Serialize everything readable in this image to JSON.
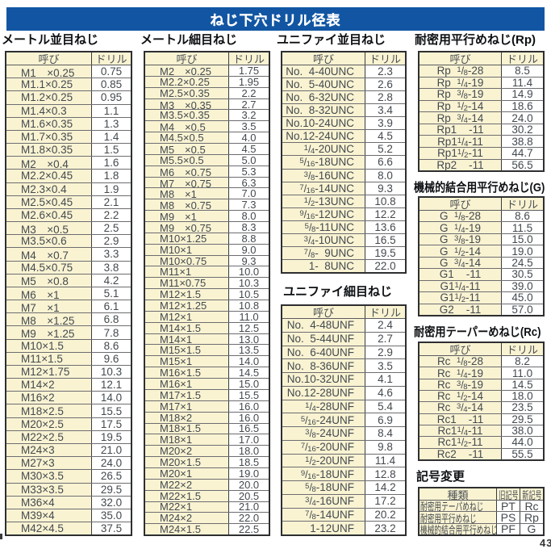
{
  "title": "ねじ下穴ドリル径表",
  "page_number": "43",
  "colors": {
    "title_bar_blue": "#1256a3",
    "cell_cream": "#f9f3d2",
    "table_border": "#2e2f31"
  },
  "tables": [
    {
      "heading": "メートル並目ねじ",
      "col_headers": [
        "呼び",
        "ドリル"
      ],
      "rows": [
        [
          "M1　×0.25",
          "0.75"
        ],
        [
          "M1.1×0.25",
          "0.85"
        ],
        [
          "M1.2×0.25",
          "0.95"
        ],
        [
          "M1.4×0.3",
          "1.1"
        ],
        [
          "M1.6×0.35",
          "1.3"
        ],
        [
          "M1.7×0.35",
          "1.4"
        ],
        [
          "M1.8×0.35",
          "1.5"
        ],
        [
          "M2　×0.4",
          "1.6"
        ],
        [
          "M2.2×0.45",
          "1.8"
        ],
        [
          "M2.3×0.4",
          "1.9"
        ],
        [
          "M2.5×0.45",
          "2.1"
        ],
        [
          "M2.6×0.45",
          "2.2"
        ],
        [
          "M3　×0.5",
          "2.5"
        ],
        [
          "M3.5×0.6",
          "2.9"
        ],
        [
          "M4　×0.7",
          "3.3"
        ],
        [
          "M4.5×0.75",
          "3.8"
        ],
        [
          "M5　×0.8",
          "4.2"
        ],
        [
          "M6　×1",
          "5.1"
        ],
        [
          "M7　×1",
          "6.1"
        ],
        [
          "M8　×1.25",
          "6.8"
        ],
        [
          "M9　×1.25",
          "7.8"
        ],
        [
          "M10×1.5",
          "8.6"
        ],
        [
          "M11×1.5",
          "9.6"
        ],
        [
          "M12×1.75",
          "10.3"
        ],
        [
          "M14×2",
          "12.1"
        ],
        [
          "M16×2",
          "14.0"
        ],
        [
          "M18×2.5",
          "15.5"
        ],
        [
          "M20×2.5",
          "17.5"
        ],
        [
          "M22×2.5",
          "19.5"
        ],
        [
          "M24×3",
          "21.0"
        ],
        [
          "M27×3",
          "24.0"
        ],
        [
          "M30×3.5",
          "26.5"
        ],
        [
          "M33×3.5",
          "29.5"
        ],
        [
          "M36×4",
          "32.0"
        ],
        [
          "M39×4",
          "35.0"
        ],
        [
          "M42×4.5",
          "37.5"
        ]
      ]
    },
    {
      "heading": "メートル細目ねじ",
      "col_headers": [
        "呼び",
        "ドリル"
      ],
      "rows": [
        [
          "M2　×0.25",
          "1.75"
        ],
        [
          "M2.2×0.25",
          "1.95"
        ],
        [
          "M2.5×0.35",
          "2.2"
        ],
        [
          "M3　×0.35",
          "2.7"
        ],
        [
          "M3.5×0.35",
          "3.2"
        ],
        [
          "M4　×0.5",
          "3.5"
        ],
        [
          "M4.5×0.5",
          "4.0"
        ],
        [
          "M5　×0.5",
          "4.5"
        ],
        [
          "M5.5×0.5",
          "5.0"
        ],
        [
          "M6　×0.75",
          "5.3"
        ],
        [
          "M7　×0.75",
          "6.3"
        ],
        [
          "M8　×1",
          "7.0"
        ],
        [
          "M8　×0.75",
          "7.3"
        ],
        [
          "M9　×1",
          "8.0"
        ],
        [
          "M9　×0.75",
          "8.3"
        ],
        [
          "M10×1.25",
          "8.8"
        ],
        [
          "M10×1",
          "9.0"
        ],
        [
          "M10×0.75",
          "9.3"
        ],
        [
          "M11×1",
          "10.0"
        ],
        [
          "M11×0.75",
          "10.3"
        ],
        [
          "M12×1.5",
          "10.5"
        ],
        [
          "M12×1.25",
          "10.8"
        ],
        [
          "M12×1",
          "11.0"
        ],
        [
          "M14×1.5",
          "12.5"
        ],
        [
          "M14×1",
          "13.0"
        ],
        [
          "M15×1.5",
          "13.5"
        ],
        [
          "M15×1",
          "14.0"
        ],
        [
          "M16×1.5",
          "14.5"
        ],
        [
          "M16×1",
          "15.0"
        ],
        [
          "M17×1.5",
          "15.5"
        ],
        [
          "M17×1",
          "16.0"
        ],
        [
          "M18×2",
          "16.0"
        ],
        [
          "M18×1.5",
          "16.5"
        ],
        [
          "M18×1",
          "17.0"
        ],
        [
          "M20×2",
          "18.0"
        ],
        [
          "M20×1.5",
          "18.5"
        ],
        [
          "M20×1",
          "19.0"
        ],
        [
          "M22×2",
          "20.0"
        ],
        [
          "M22×1.5",
          "20.5"
        ],
        [
          "M22×1",
          "21.0"
        ],
        [
          "M24×2",
          "22.0"
        ],
        [
          "M24×1.5",
          "22.5"
        ]
      ]
    },
    {
      "heading": "ユニファイ並目ねじ",
      "col_headers": [
        "呼び",
        "ドリル"
      ],
      "rows": [
        [
          "No.  4-40UNC",
          "2.3"
        ],
        [
          "No.  5-40UNC",
          "2.6"
        ],
        [
          "No.  6-32UNC",
          "2.8"
        ],
        [
          "No.  8-32UNC",
          "3.4"
        ],
        [
          "No.10-24UNC",
          "3.9"
        ],
        [
          "No.12-24UNC",
          "4.5"
        ],
        [
          "1/4-20UNC",
          "5.2"
        ],
        [
          "5/16-18UNC",
          "6.6"
        ],
        [
          "3/8-16UNC",
          "8.0"
        ],
        [
          "7/16-14UNC",
          "9.3"
        ],
        [
          "1/2-13UNC",
          "10.8"
        ],
        [
          "9/16-12UNC",
          "12.2"
        ],
        [
          "5/8-11UNC",
          "13.6"
        ],
        [
          "3/4-10UNC",
          "16.5"
        ],
        [
          "7/8-  9UNC",
          "19.5"
        ],
        [
          "1-  8UNC",
          "22.0"
        ]
      ]
    },
    {
      "heading": "ユニファイ細目ねじ",
      "col_headers": [
        "呼び",
        "ドリル"
      ],
      "rows": [
        [
          "No.  4-48UNF",
          "2.4"
        ],
        [
          "No.  5-44UNF",
          "2.7"
        ],
        [
          "No.  6-40UNF",
          "2.9"
        ],
        [
          "No.  8-36UNF",
          "3.5"
        ],
        [
          "No.10-32UNF",
          "4.1"
        ],
        [
          "No.12-28UNF",
          "4.6"
        ],
        [
          "1/4-28UNF",
          "5.4"
        ],
        [
          "5/16-24UNF",
          "6.9"
        ],
        [
          "3/8-24UNF",
          "8.4"
        ],
        [
          "7/16-20UNF",
          "9.8"
        ],
        [
          "1/2-20UNF",
          "11.4"
        ],
        [
          "9/16-18UNF",
          "12.8"
        ],
        [
          "5/8-18UNF",
          "14.2"
        ],
        [
          "3/4-16UNF",
          "17.2"
        ],
        [
          "7/8-14UNF",
          "20.2"
        ],
        [
          "1-12UNF",
          "23.2"
        ]
      ]
    },
    {
      "heading": "耐密用平行めねじ(Rp)",
      "col_headers": [
        "呼び",
        "ドリル"
      ],
      "rows": [
        [
          "Rp  1/8-28",
          "8.5"
        ],
        [
          "Rp  1/4-19",
          "11.4"
        ],
        [
          "Rp  3/8-19",
          "14.9"
        ],
        [
          "Rp  1/2-14",
          "18.6"
        ],
        [
          "Rp  3/4-14",
          "24.0"
        ],
        [
          "Rp1    -11",
          "30.2"
        ],
        [
          "Rp11/4-11",
          "38.8"
        ],
        [
          "Rp11/2-11",
          "44.7"
        ],
        [
          "Rp2    -11",
          "56.5"
        ]
      ]
    },
    {
      "heading": "機械的結合用平行めねじ(G)",
      "col_headers": [
        "呼び",
        "ドリル"
      ],
      "rows": [
        [
          "G  1/8-28",
          "8.6"
        ],
        [
          "G  1/4-19",
          "11.5"
        ],
        [
          "G  3/8-19",
          "15.0"
        ],
        [
          "G  1/2-14",
          "19.0"
        ],
        [
          "G  3/4-14",
          "24.5"
        ],
        [
          "G1    -11",
          "30.5"
        ],
        [
          "G11/4-11",
          "39.0"
        ],
        [
          "G11/2-11",
          "45.0"
        ],
        [
          "G2    -11",
          "57.0"
        ]
      ]
    },
    {
      "heading": "耐密用テーパーめねじ(Rc)",
      "col_headers": [
        "呼び",
        "ドリル"
      ],
      "rows": [
        [
          "Rc  1/8-28",
          "8.2"
        ],
        [
          "Rc  1/4-19",
          "11.0"
        ],
        [
          "Rc  3/8-19",
          "14.5"
        ],
        [
          "Rc  1/2-14",
          "18.0"
        ],
        [
          "Rc  3/4-14",
          "23.5"
        ],
        [
          "Rc1    -11",
          "29.5"
        ],
        [
          "Rc11/4-11",
          "38.0"
        ],
        [
          "Rc11/2-11",
          "44.0"
        ],
        [
          "Rc2    -11",
          "55.5"
        ]
      ]
    }
  ],
  "symbol_table": {
    "heading": "記号変更",
    "col_headers": [
      "種類",
      "旧記号",
      "新記号"
    ],
    "rows": [
      [
        "耐密用テーパめねじ",
        "PT",
        "Rc"
      ],
      [
        "耐密用平行めねじ",
        "PS",
        "Rp"
      ],
      [
        "機械的結合用平行めねじ",
        "PF",
        "G"
      ]
    ]
  }
}
